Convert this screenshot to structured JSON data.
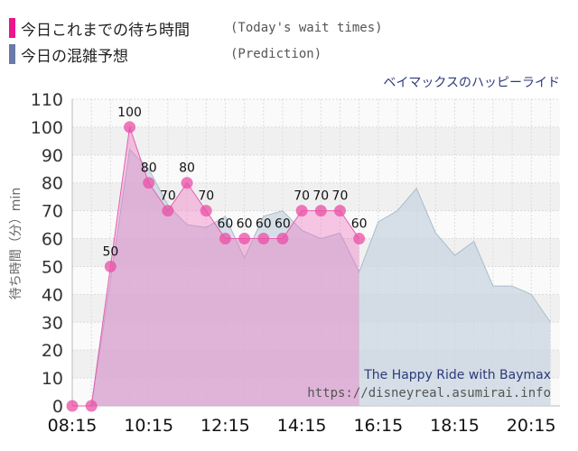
{
  "legend": {
    "today": {
      "ja": "今日これまでの待ち時間",
      "en": "(Today's wait times)",
      "color": "#e9168c"
    },
    "prediction": {
      "ja": "今日の混雑予想",
      "en": "(Prediction)",
      "color": "#6b7aa6"
    }
  },
  "chart_data": {
    "type": "area",
    "attraction": "ベイマックスのハッピーライド",
    "ylabel": "待ち時間（分）min",
    "xlabel": "",
    "x_tick_labels": [
      "08:15",
      "10:15",
      "12:15",
      "14:15",
      "16:15",
      "18:15",
      "20:15"
    ],
    "y_ticks": [
      0,
      10,
      20,
      30,
      40,
      50,
      60,
      70,
      80,
      90,
      100,
      110
    ],
    "xlim": [
      "08:15",
      "21:00"
    ],
    "ylim": [
      0,
      110
    ],
    "grid": true,
    "watermark": [
      "The Happy Ride with Baymax",
      "https://disneyreal.asumirai.info"
    ],
    "series": [
      {
        "name": "今日これまでの待ち時間",
        "color": "#e9168c",
        "points": [
          {
            "x": "08:15",
            "y": 0
          },
          {
            "x": "08:45",
            "y": 0
          },
          {
            "x": "09:15",
            "y": 50
          },
          {
            "x": "09:45",
            "y": 100
          },
          {
            "x": "10:15",
            "y": 80
          },
          {
            "x": "10:45",
            "y": 70
          },
          {
            "x": "11:15",
            "y": 80
          },
          {
            "x": "11:45",
            "y": 70
          },
          {
            "x": "12:15",
            "y": 60
          },
          {
            "x": "12:45",
            "y": 60
          },
          {
            "x": "13:15",
            "y": 60
          },
          {
            "x": "13:45",
            "y": 60
          },
          {
            "x": "14:15",
            "y": 70
          },
          {
            "x": "14:45",
            "y": 70
          },
          {
            "x": "15:15",
            "y": 70
          },
          {
            "x": "15:45",
            "y": 60
          }
        ]
      },
      {
        "name": "今日の混雑予想",
        "color": "#6b7aa6",
        "points": [
          {
            "x": "08:15",
            "y": 0
          },
          {
            "x": "08:45",
            "y": 0
          },
          {
            "x": "09:15",
            "y": 45
          },
          {
            "x": "09:45",
            "y": 92
          },
          {
            "x": "10:15",
            "y": 85
          },
          {
            "x": "10:45",
            "y": 72
          },
          {
            "x": "11:15",
            "y": 65
          },
          {
            "x": "11:45",
            "y": 64
          },
          {
            "x": "12:15",
            "y": 68
          },
          {
            "x": "12:45",
            "y": 53
          },
          {
            "x": "13:15",
            "y": 68
          },
          {
            "x": "13:45",
            "y": 70
          },
          {
            "x": "14:15",
            "y": 63
          },
          {
            "x": "14:45",
            "y": 60
          },
          {
            "x": "15:15",
            "y": 62
          },
          {
            "x": "15:45",
            "y": 48
          },
          {
            "x": "16:15",
            "y": 66
          },
          {
            "x": "16:45",
            "y": 70
          },
          {
            "x": "17:15",
            "y": 78
          },
          {
            "x": "17:45",
            "y": 62
          },
          {
            "x": "18:15",
            "y": 54
          },
          {
            "x": "18:45",
            "y": 59
          },
          {
            "x": "19:15",
            "y": 43
          },
          {
            "x": "19:45",
            "y": 43
          },
          {
            "x": "20:15",
            "y": 40
          },
          {
            "x": "20:45",
            "y": 30
          }
        ]
      }
    ]
  }
}
